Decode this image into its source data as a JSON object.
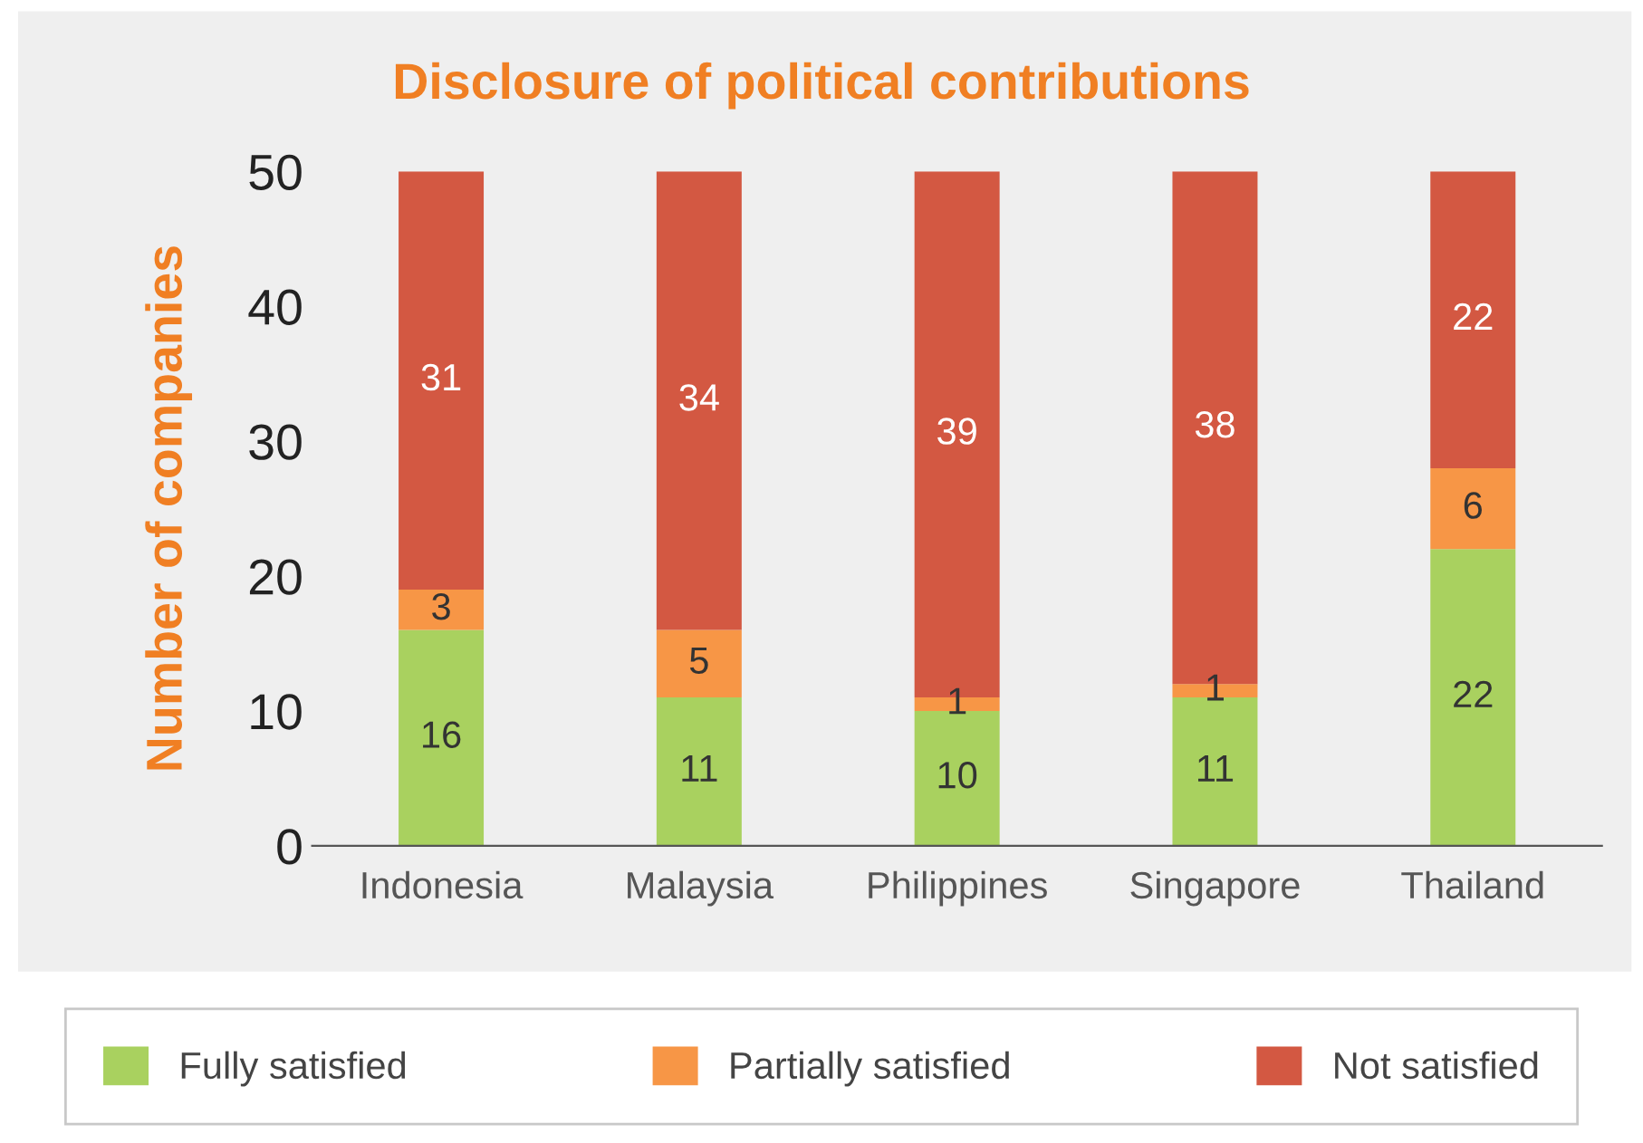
{
  "chart_data": {
    "type": "bar",
    "title": "Disclosure of political contributions",
    "ylabel": "Number of companies",
    "categories": [
      "Indonesia",
      "Malaysia",
      "Philippines",
      "Singapore",
      "Thailand"
    ],
    "series": [
      {
        "name": "Fully satisfied",
        "color": "#a9d15f",
        "values": [
          16,
          11,
          10,
          11,
          22
        ]
      },
      {
        "name": "Partially satisfied",
        "color": "#f79646",
        "values": [
          3,
          5,
          1,
          1,
          6
        ]
      },
      {
        "name": "Not satisfied",
        "color": "#d35842",
        "values": [
          31,
          34,
          39,
          38,
          22
        ]
      }
    ],
    "stacked": true,
    "ylim": [
      0,
      50
    ],
    "yticks": [
      0,
      10,
      20,
      30,
      40,
      50
    ],
    "grid": false,
    "legend": "bottom",
    "data_labels": true
  }
}
